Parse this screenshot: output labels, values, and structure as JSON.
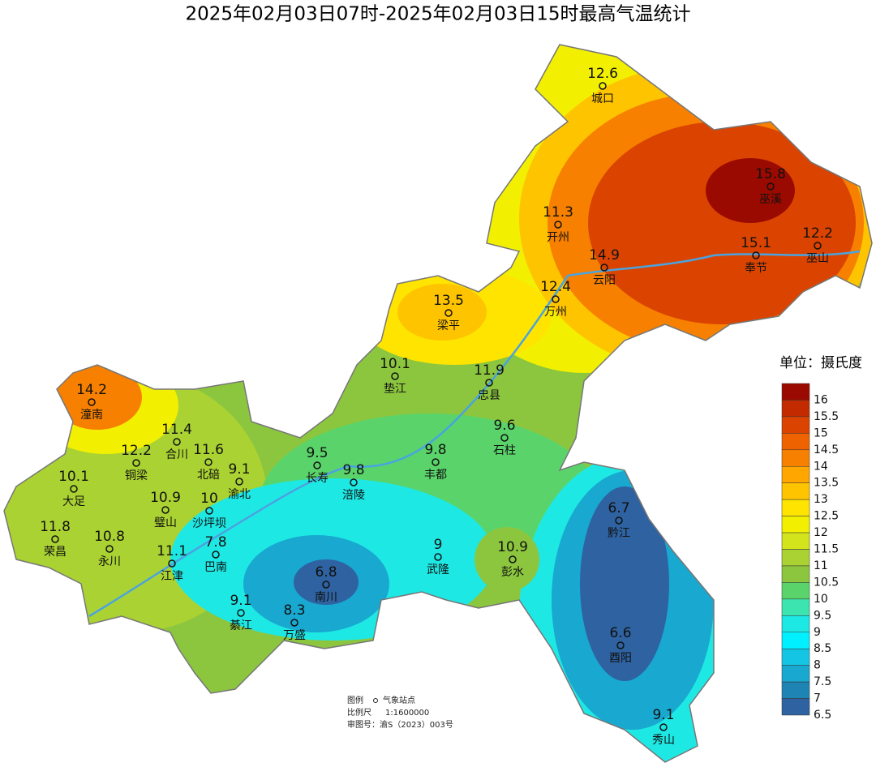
{
  "title": "2025年02月03日07时-2025年02月03日15时最高气温统计",
  "stations": [
    {
      "name": "城口",
      "value": 12.6
    },
    {
      "name": "巫溪",
      "value": 15.8
    },
    {
      "name": "开州",
      "value": 11.3
    },
    {
      "name": "巫山",
      "value": 12.2
    },
    {
      "name": "奉节",
      "value": 15.1
    },
    {
      "name": "云阳",
      "value": 14.9
    },
    {
      "name": "万州",
      "value": 12.4
    },
    {
      "name": "梁平",
      "value": 13.5
    },
    {
      "name": "垫江",
      "value": 10.1
    },
    {
      "name": "忠县",
      "value": 11.9
    },
    {
      "name": "潼南",
      "value": 14.2
    },
    {
      "name": "合川",
      "value": 11.4
    },
    {
      "name": "铜梁",
      "value": 12.2
    },
    {
      "name": "北碚",
      "value": 11.6
    },
    {
      "name": "石柱",
      "value": 9.6
    },
    {
      "name": "长寿",
      "value": 9.5
    },
    {
      "name": "涪陵",
      "value": 9.8
    },
    {
      "name": "丰都",
      "value": 9.8
    },
    {
      "name": "渝北",
      "value": 9.1
    },
    {
      "name": "大足",
      "value": 10.1
    },
    {
      "name": "璧山",
      "value": 10.9
    },
    {
      "name": "沙坪坝",
      "value": 10
    },
    {
      "name": "荣昌",
      "value": 11.8
    },
    {
      "name": "永川",
      "value": 10.8
    },
    {
      "name": "黔江",
      "value": 6.7
    },
    {
      "name": "武隆",
      "value": 9
    },
    {
      "name": "彭水",
      "value": 10.9
    },
    {
      "name": "江津",
      "value": 11.1
    },
    {
      "name": "巴南",
      "value": 7.8
    },
    {
      "name": "南川",
      "value": 6.8
    },
    {
      "name": "綦江",
      "value": 9.1
    },
    {
      "name": "万盛",
      "value": 8.3
    },
    {
      "name": "酉阳",
      "value": 6.6
    },
    {
      "name": "秀山",
      "value": 9.1
    }
  ],
  "legend": {
    "unit": "单位：摄氏度",
    "levels": [
      {
        "label": 16,
        "color": "#9b0a00"
      },
      {
        "label": 15.5,
        "color": "#c32a00"
      },
      {
        "label": 15,
        "color": "#da4400"
      },
      {
        "label": 14.5,
        "color": "#ef6200"
      },
      {
        "label": 14,
        "color": "#f78000"
      },
      {
        "label": 13.5,
        "color": "#ffa600"
      },
      {
        "label": 13,
        "color": "#ffc400"
      },
      {
        "label": 12.5,
        "color": "#ffe400"
      },
      {
        "label": 12,
        "color": "#f2f000"
      },
      {
        "label": 11.5,
        "color": "#d4e41c"
      },
      {
        "label": 11,
        "color": "#aad232"
      },
      {
        "label": 10.5,
        "color": "#8cc63e"
      },
      {
        "label": 10,
        "color": "#5ad46a"
      },
      {
        "label": 9.5,
        "color": "#3ce4b0"
      },
      {
        "label": 9,
        "color": "#1ee8e4"
      },
      {
        "label": 8.5,
        "color": "#00f0ff"
      },
      {
        "label": 8,
        "color": "#14c6e4"
      },
      {
        "label": 7.5,
        "color": "#18a8d0"
      },
      {
        "label": 7,
        "color": "#1e84b4"
      },
      {
        "label": 6.5,
        "color": "#2e62a0"
      }
    ]
  },
  "notes": {
    "legend_label": "图例",
    "station_label": "气象站点",
    "scale_label": "比例尺",
    "scale": "1:1600000",
    "approval": "审图号：渝S（2023）003号"
  }
}
